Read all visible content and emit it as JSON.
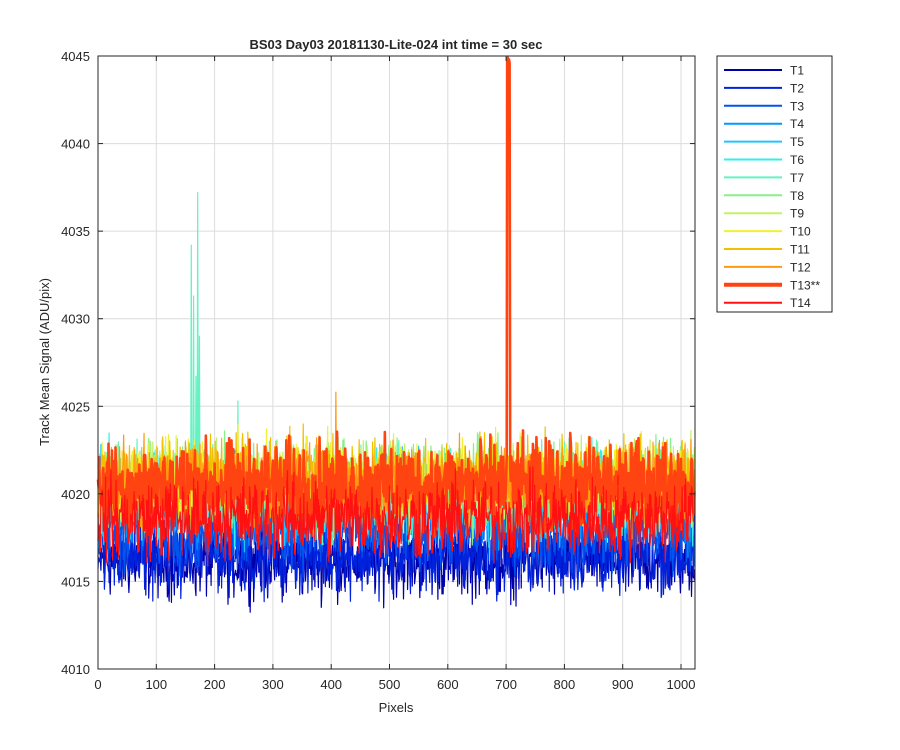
{
  "chart_data": {
    "type": "line",
    "title": "BS03 Day03 20181130-Lite-024 int time = 30 sec",
    "xlabel": "Pixels",
    "ylabel": "Track Mean Signal (ADU/pix)",
    "xlim": [
      0,
      1024
    ],
    "ylim": [
      4010,
      4045
    ],
    "xticks": [
      0,
      100,
      200,
      300,
      400,
      500,
      600,
      700,
      800,
      900,
      1000
    ],
    "yticks": [
      4010,
      4015,
      4020,
      4025,
      4030,
      4035,
      4040,
      4045
    ],
    "grid": true,
    "legend_position": "outside-right",
    "n_points": 1024,
    "series": [
      {
        "name": "T1",
        "color": "#0000aa",
        "mean": 4016.2,
        "spread": 1.3
      },
      {
        "name": "T2",
        "color": "#0022dd",
        "mean": 4016.5,
        "spread": 1.3
      },
      {
        "name": "T3",
        "color": "#0055ee",
        "mean": 4018.0,
        "spread": 1.4
      },
      {
        "name": "T4",
        "color": "#0099ff",
        "mean": 4019.3,
        "spread": 1.4
      },
      {
        "name": "T5",
        "color": "#22c4ff",
        "mean": 4019.8,
        "spread": 1.4
      },
      {
        "name": "T6",
        "color": "#33eeee",
        "mean": 4020.0,
        "spread": 1.5
      },
      {
        "name": "T7",
        "color": "#66f2c2",
        "mean": 4020.2,
        "spread": 1.5,
        "spikes": [
          {
            "x": 160,
            "y": 4034.2
          },
          {
            "x": 164,
            "y": 4031.3
          },
          {
            "x": 168,
            "y": 4026.7
          },
          {
            "x": 171,
            "y": 4037.2
          },
          {
            "x": 174,
            "y": 4029.0
          },
          {
            "x": 240,
            "y": 4025.3
          }
        ]
      },
      {
        "name": "T8",
        "color": "#88f088",
        "mean": 4020.5,
        "spread": 1.5
      },
      {
        "name": "T9",
        "color": "#c6f066",
        "mean": 4020.6,
        "spread": 1.4
      },
      {
        "name": "T10",
        "color": "#f2f033",
        "mean": 4020.8,
        "spread": 1.4
      },
      {
        "name": "T11",
        "color": "#f2c000",
        "mean": 4020.9,
        "spread": 1.4
      },
      {
        "name": "T12",
        "color": "#ff9911",
        "mean": 4020.5,
        "spread": 1.4,
        "spikes": [
          {
            "x": 408,
            "y": 4025.8
          }
        ]
      },
      {
        "name": "T13**",
        "color": "#ff4411",
        "mean": 4020.5,
        "spread": 1.5,
        "bold": true,
        "spikes": [
          {
            "x": 702,
            "y": 4044.8
          },
          {
            "x": 703,
            "y": 4044.9
          },
          {
            "x": 704,
            "y": 4044.7
          },
          {
            "x": 705,
            "y": 4044.8
          },
          {
            "x": 706,
            "y": 4044.6
          }
        ]
      },
      {
        "name": "T14",
        "color": "#ff1111",
        "mean": 4018.6,
        "spread": 1.4
      }
    ]
  }
}
